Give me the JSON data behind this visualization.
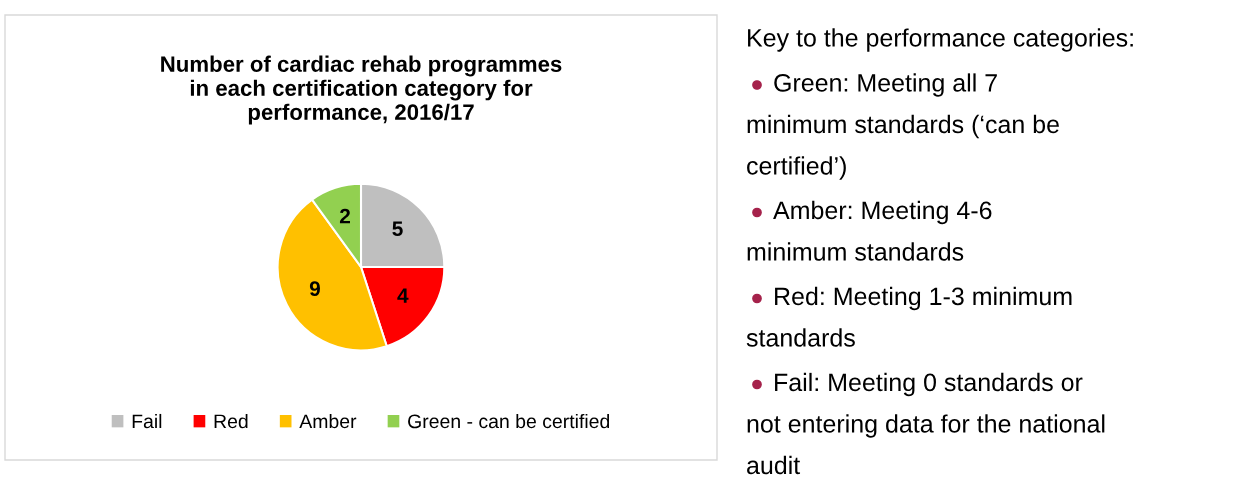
{
  "chart_data": [
    {
      "type": "pie",
      "title": "Number of cardiac rehab programmes\nin each certification category for\nperformance, 2016/17",
      "categories": [
        "Fail",
        "Red",
        "Amber",
        "Green - can be certified"
      ],
      "values": [
        5,
        4,
        9,
        2
      ],
      "colors": [
        "#bfbfbf",
        "#ff0000",
        "#ffc000",
        "#92d050"
      ],
      "data_labels": true,
      "legend": "bottom"
    },
    {
      "type": "other",
      "title": "Key to the performance categories:",
      "annotations": [
        "Green: Meeting all 7\nminimum standards (‘can be\ncertified’)",
        "Amber: Meeting 4-6\nminimum standards",
        "Red: Meeting 1-3 minimum\nstandards",
        "Fail: Meeting 0 standards or\nnot entering data for the national\naudit"
      ]
    }
  ]
}
